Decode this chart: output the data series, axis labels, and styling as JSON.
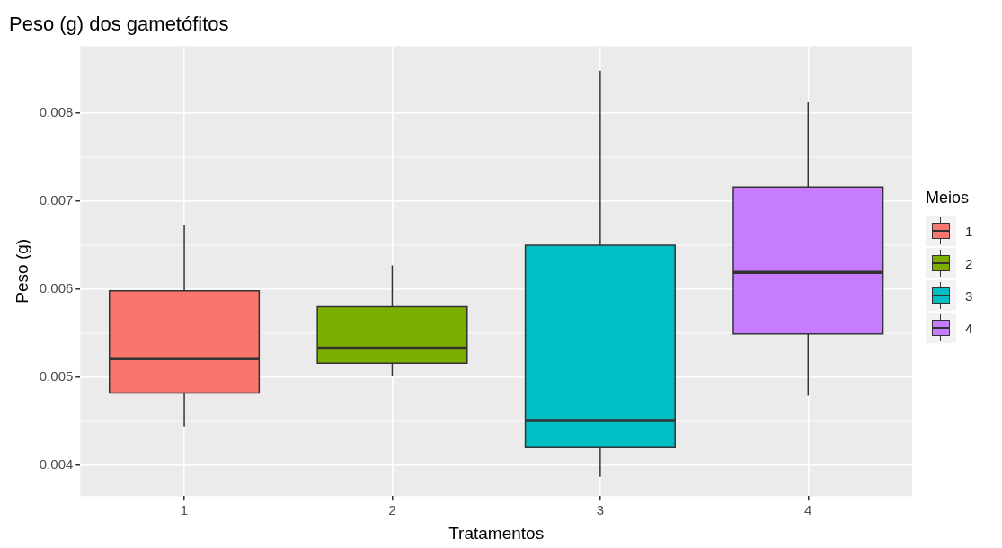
{
  "chart_data": {
    "type": "box",
    "title": "Peso (g) dos gametófitos",
    "xlabel": "Tratamentos",
    "ylabel": "Peso (g)",
    "legend_title": "Meios",
    "categories": [
      "1",
      "2",
      "3",
      "4"
    ],
    "series": [
      {
        "name": "1",
        "color": "#f8766d",
        "boxes": [
          {
            "low": 0.00444,
            "q1": 0.00482,
            "median": 0.00521,
            "q3": 0.00598,
            "high": 0.00673
          },
          null,
          null,
          null
        ]
      },
      {
        "name": "2",
        "color": "#7cae00",
        "boxes": [
          null,
          {
            "low": 0.00501,
            "q1": 0.00516,
            "median": 0.00533,
            "q3": 0.0058,
            "high": 0.00627
          },
          null,
          null
        ]
      },
      {
        "name": "3",
        "color": "#00bfc4",
        "boxes": [
          null,
          null,
          {
            "low": 0.00387,
            "q1": 0.0042,
            "median": 0.00451,
            "q3": 0.0065,
            "high": 0.00848
          },
          null
        ]
      },
      {
        "name": "4",
        "color": "#c77cff",
        "boxes": [
          null,
          null,
          null,
          {
            "low": 0.00479,
            "q1": 0.00549,
            "median": 0.00619,
            "q3": 0.00716,
            "high": 0.00813
          }
        ]
      }
    ],
    "ylim": [
      0.00365,
      0.00876
    ],
    "yticks": [
      {
        "value": 0.004,
        "label": "0,004"
      },
      {
        "value": 0.005,
        "label": "0,005"
      },
      {
        "value": 0.006,
        "label": "0,006"
      },
      {
        "value": 0.007,
        "label": "0,007"
      },
      {
        "value": 0.008,
        "label": "0,008"
      }
    ],
    "grid": true,
    "legend": "right"
  }
}
